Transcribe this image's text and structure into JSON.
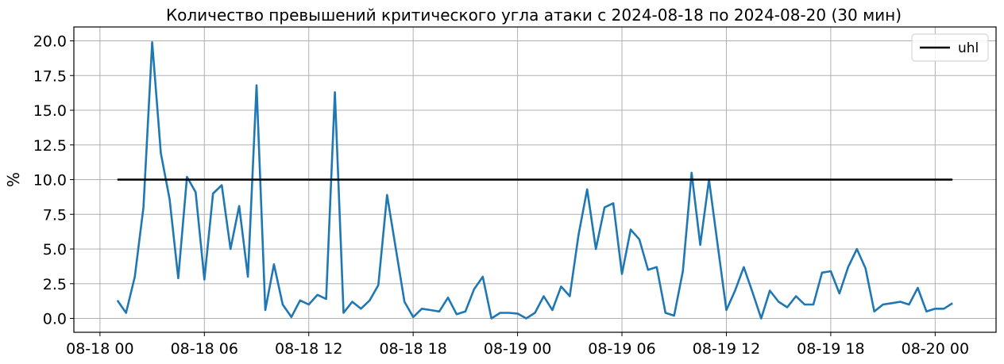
{
  "chart_data": {
    "type": "line",
    "title": "Количество превышений критического угла атаки с 2024-08-18 по 2024-08-20 (30 мин)",
    "xlabel": "",
    "ylabel": "%",
    "xlim": [
      "2024-08-17 22:30",
      "2024-08-20 03:30"
    ],
    "ylim": [
      -1.0,
      21.0
    ],
    "grid": true,
    "legend_position": "top-right",
    "x_ticks": [
      {
        "value": "2024-08-18 00:00",
        "label": "08-18 00"
      },
      {
        "value": "2024-08-18 06:00",
        "label": "08-18 06"
      },
      {
        "value": "2024-08-18 12:00",
        "label": "08-18 12"
      },
      {
        "value": "2024-08-18 18:00",
        "label": "08-18 18"
      },
      {
        "value": "2024-08-19 00:00",
        "label": "08-19 00"
      },
      {
        "value": "2024-08-19 06:00",
        "label": "08-19 06"
      },
      {
        "value": "2024-08-19 12:00",
        "label": "08-19 12"
      },
      {
        "value": "2024-08-19 18:00",
        "label": "08-19 18"
      },
      {
        "value": "2024-08-20 00:00",
        "label": "08-20 00"
      }
    ],
    "y_ticks": [
      {
        "value": 0.0,
        "label": "0.0"
      },
      {
        "value": 2.5,
        "label": "2.5"
      },
      {
        "value": 5.0,
        "label": "5.0"
      },
      {
        "value": 7.5,
        "label": "7.5"
      },
      {
        "value": 10.0,
        "label": "10.0"
      },
      {
        "value": 12.5,
        "label": "12.5"
      },
      {
        "value": 15.0,
        "label": "15.0"
      },
      {
        "value": 17.5,
        "label": "17.5"
      },
      {
        "value": 20.0,
        "label": "20.0"
      }
    ],
    "series": [
      {
        "name": "",
        "color": "#1f77b4",
        "x": [
          "2024-08-18 01:00",
          "2024-08-18 01:30",
          "2024-08-18 02:00",
          "2024-08-18 02:30",
          "2024-08-18 03:00",
          "2024-08-18 03:30",
          "2024-08-18 04:00",
          "2024-08-18 04:30",
          "2024-08-18 05:00",
          "2024-08-18 05:30",
          "2024-08-18 06:00",
          "2024-08-18 06:30",
          "2024-08-18 07:00",
          "2024-08-18 07:30",
          "2024-08-18 08:00",
          "2024-08-18 08:30",
          "2024-08-18 09:00",
          "2024-08-18 09:30",
          "2024-08-18 10:00",
          "2024-08-18 10:30",
          "2024-08-18 11:00",
          "2024-08-18 11:30",
          "2024-08-18 12:00",
          "2024-08-18 12:30",
          "2024-08-18 13:00",
          "2024-08-18 13:30",
          "2024-08-18 14:00",
          "2024-08-18 14:30",
          "2024-08-18 15:00",
          "2024-08-18 15:30",
          "2024-08-18 16:00",
          "2024-08-18 16:30",
          "2024-08-18 17:30",
          "2024-08-18 18:00",
          "2024-08-18 18:30",
          "2024-08-18 19:00",
          "2024-08-18 19:30",
          "2024-08-18 20:00",
          "2024-08-18 20:30",
          "2024-08-18 21:00",
          "2024-08-18 21:30",
          "2024-08-18 22:00",
          "2024-08-18 22:30",
          "2024-08-18 23:00",
          "2024-08-18 23:30",
          "2024-08-19 00:00",
          "2024-08-19 00:30",
          "2024-08-19 01:00",
          "2024-08-19 01:30",
          "2024-08-19 02:00",
          "2024-08-19 02:30",
          "2024-08-19 03:00",
          "2024-08-19 03:30",
          "2024-08-19 04:00",
          "2024-08-19 04:30",
          "2024-08-19 05:00",
          "2024-08-19 05:30",
          "2024-08-19 06:00",
          "2024-08-19 06:30",
          "2024-08-19 07:00",
          "2024-08-19 07:30",
          "2024-08-19 08:00",
          "2024-08-19 08:30",
          "2024-08-19 09:00",
          "2024-08-19 09:30",
          "2024-08-19 10:00",
          "2024-08-19 10:30",
          "2024-08-19 11:00",
          "2024-08-19 11:30",
          "2024-08-19 12:00",
          "2024-08-19 12:30",
          "2024-08-19 13:00",
          "2024-08-19 13:30",
          "2024-08-19 14:00",
          "2024-08-19 14:30",
          "2024-08-19 15:00",
          "2024-08-19 15:30",
          "2024-08-19 16:00",
          "2024-08-19 16:30",
          "2024-08-19 17:00",
          "2024-08-19 17:30",
          "2024-08-19 18:00",
          "2024-08-19 18:30",
          "2024-08-19 19:00",
          "2024-08-19 19:30",
          "2024-08-19 20:00",
          "2024-08-19 20:30",
          "2024-08-19 21:00",
          "2024-08-19 21:30",
          "2024-08-19 22:00",
          "2024-08-19 22:30",
          "2024-08-19 23:00",
          "2024-08-19 23:30",
          "2024-08-20 00:00",
          "2024-08-20 00:30",
          "2024-08-20 01:00"
        ],
        "values": [
          1.3,
          0.4,
          3.0,
          8.0,
          19.9,
          11.9,
          8.6,
          2.9,
          10.2,
          9.1,
          2.8,
          9.0,
          9.6,
          5.0,
          8.1,
          3.0,
          16.8,
          0.6,
          3.9,
          1.0,
          0.1,
          1.3,
          1.0,
          1.7,
          1.4,
          16.3,
          0.4,
          1.2,
          0.7,
          1.3,
          2.4,
          8.9,
          1.2,
          0.1,
          0.7,
          0.6,
          0.5,
          1.5,
          0.3,
          0.5,
          2.1,
          3.0,
          0.0,
          0.4,
          0.4,
          0.35,
          0.0,
          0.4,
          1.6,
          0.6,
          2.3,
          1.6,
          6.0,
          9.3,
          5.0,
          8.0,
          8.3,
          3.2,
          6.4,
          5.7,
          3.5,
          3.7,
          0.4,
          0.2,
          3.4,
          10.5,
          5.3,
          10.0,
          5.3,
          0.6,
          2.0,
          3.7,
          1.9,
          0.0,
          2.0,
          1.2,
          0.8,
          1.6,
          1.0,
          1.0,
          3.3,
          3.4,
          1.8,
          3.7,
          5.0,
          3.6,
          0.5,
          1.0,
          1.1,
          1.2,
          1.0,
          2.2,
          0.5,
          0.7,
          0.7,
          1.1
        ]
      },
      {
        "name": "uhl",
        "color": "#000000",
        "x": [
          "2024-08-18 01:00",
          "2024-08-20 01:00"
        ],
        "values": [
          10.0,
          10.0
        ]
      }
    ]
  }
}
